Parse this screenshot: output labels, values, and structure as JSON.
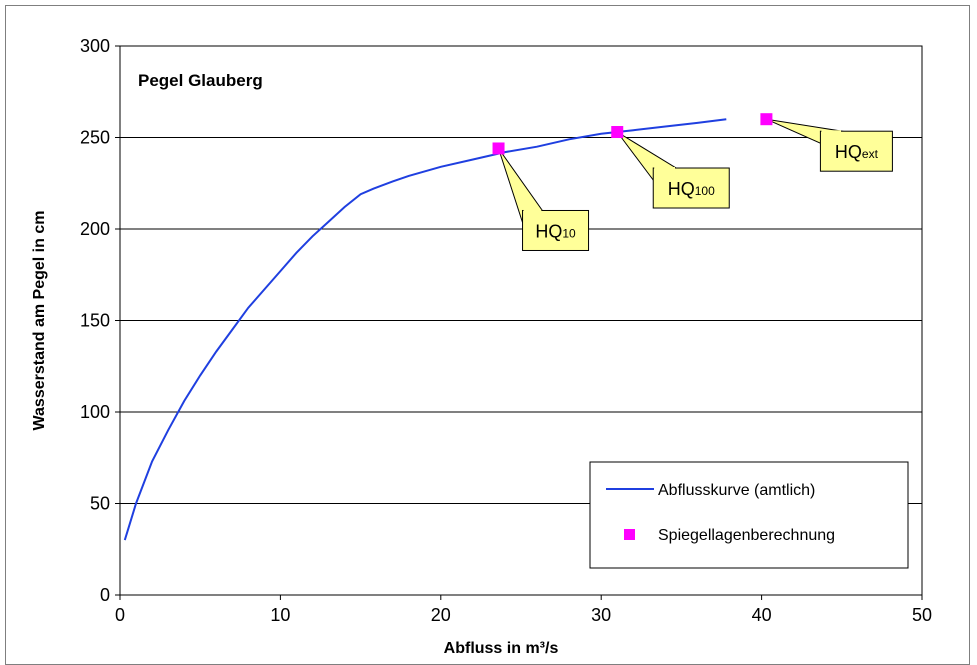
{
  "colors": {
    "curve": "#1f3fe0",
    "marker": "#ff00ff",
    "callout_fill": "#ffff99",
    "callout_border": "#000000",
    "grid": "#000000"
  },
  "chart_data": {
    "type": "line",
    "title": "Pegel Glauberg",
    "xlabel": "Abfluss in m³/s",
    "ylabel": "Wasserstand am Pegel in cm",
    "xlim": [
      0,
      50
    ],
    "ylim": [
      0,
      300
    ],
    "xticks": [
      0,
      10,
      20,
      30,
      40,
      50
    ],
    "yticks": [
      0,
      50,
      100,
      150,
      200,
      250,
      300
    ],
    "grid": "horizontal",
    "legend_position": "bottom-right",
    "series": [
      {
        "name": "Abflusskurve (amtlich)",
        "kind": "line",
        "x": [
          0.3,
          1,
          2,
          3,
          4,
          5,
          6,
          7,
          8,
          9,
          10,
          11,
          12,
          13,
          14,
          15,
          15.8,
          17,
          18,
          20,
          22,
          24,
          26,
          28,
          30,
          32,
          34,
          36,
          37.8
        ],
        "y": [
          30,
          50,
          73,
          90,
          106,
          120,
          133,
          145,
          157,
          167,
          177,
          187,
          196,
          204,
          212,
          219,
          222,
          226,
          229,
          234,
          238,
          242,
          245,
          249,
          252,
          254,
          256,
          258,
          260
        ]
      },
      {
        "name": "Spiegellagenberechnung",
        "kind": "scatter",
        "points": [
          {
            "x": 23.6,
            "y": 244,
            "label_main": "HQ",
            "label_sub": "10"
          },
          {
            "x": 31,
            "y": 253,
            "label_main": "HQ",
            "label_sub": "100"
          },
          {
            "x": 40.3,
            "y": 260,
            "label_main": "HQ",
            "label_sub": "ext"
          }
        ]
      }
    ]
  }
}
